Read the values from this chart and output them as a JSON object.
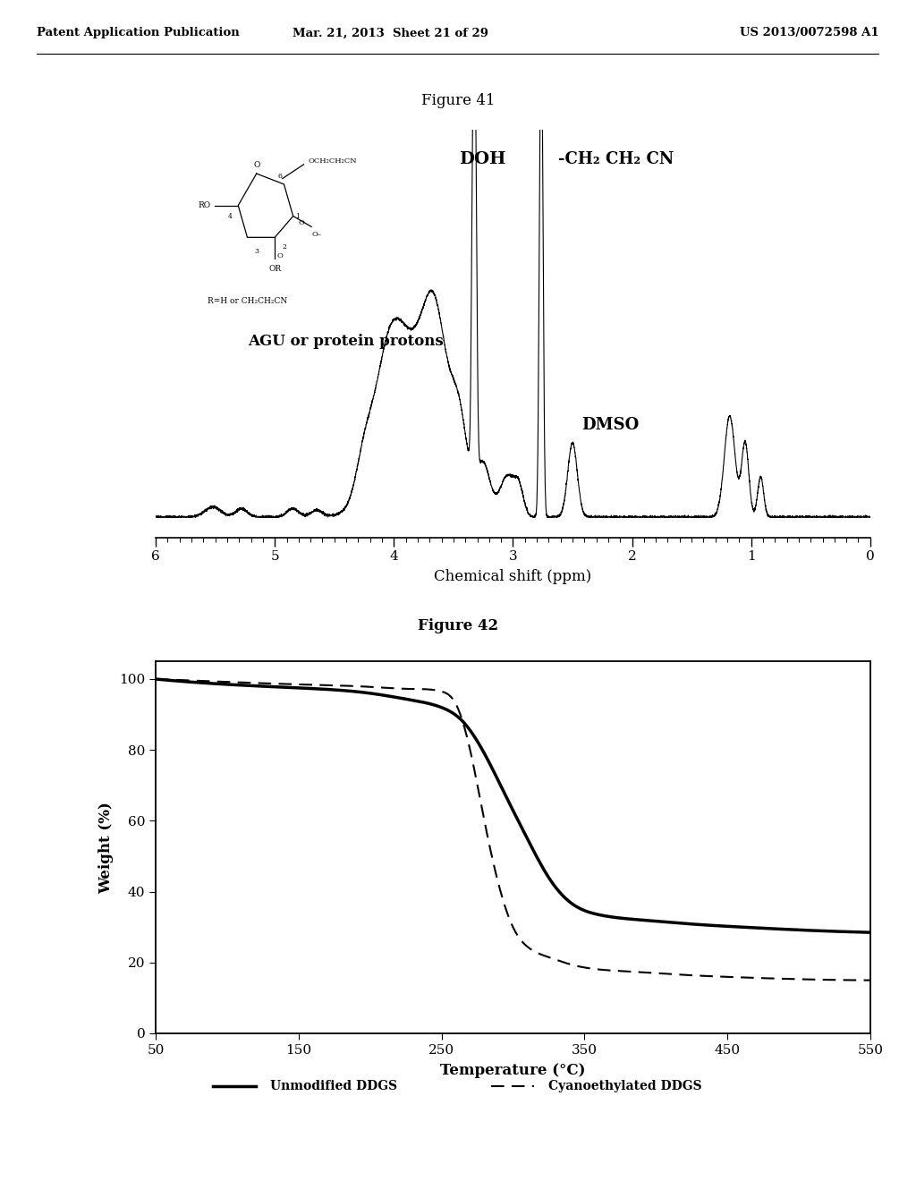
{
  "header_left": "Patent Application Publication",
  "header_mid": "Mar. 21, 2013  Sheet 21 of 29",
  "header_right": "US 2013/0072598 A1",
  "fig41_title": "Figure 41",
  "fig42_title": "Figure 42",
  "nmr_xlabel": "Chemical shift (ppm)",
  "nmr_xlim": [
    6.0,
    0.0
  ],
  "nmr_xticks": [
    6.0,
    5.0,
    4.0,
    3.0,
    2.0,
    1.0,
    0.0
  ],
  "nmr_label_DOH": "DOH",
  "nmr_label_ch2": "-CH₂ CH₂ CN",
  "nmr_label_AGU": "AGU or protein protons",
  "nmr_label_DMSO": "DMSO",
  "tga_xlabel": "Temperature (°C)",
  "tga_ylabel": "Weight (%)",
  "tga_xlim": [
    50,
    550
  ],
  "tga_ylim": [
    0,
    105
  ],
  "tga_xticks": [
    50,
    150,
    250,
    350,
    450,
    550
  ],
  "tga_yticks": [
    0,
    20,
    40,
    60,
    80,
    100
  ],
  "legend_solid": "Unmodified DDGS",
  "legend_dashed": "Cyanoethylated DDGS",
  "bg_color": "#ffffff",
  "line_color": "#000000",
  "struct_line1": "OCH₂CH₂CN",
  "struct_line2": "RO",
  "struct_line3": "OR",
  "struct_line4": "R=H or CH₂CH₂CN"
}
